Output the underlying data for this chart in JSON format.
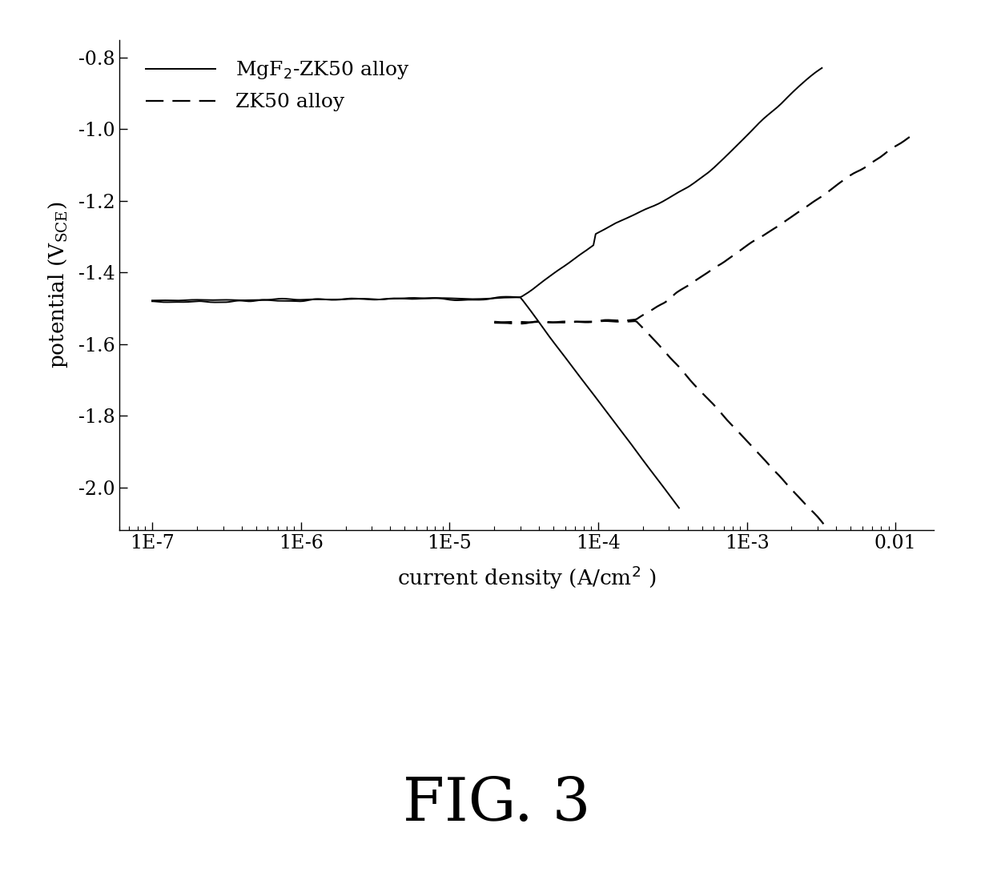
{
  "title": "FIG. 3",
  "ylabel": "potential (V$_{SCE}$)",
  "xlabel": "current density (A/cm$^2$ )",
  "ylim": [
    -2.1,
    -0.75
  ],
  "yticks": [
    -2.0,
    -1.8,
    -1.6,
    -1.4,
    -1.2,
    -1.0,
    -0.8
  ],
  "xtick_labels": [
    "1E-7",
    "1E-6",
    "1E-5",
    "1E-4",
    "1E-3",
    "0.01"
  ],
  "xtick_positions": [
    1e-07,
    1e-06,
    1e-05,
    0.0001,
    0.001,
    0.01
  ],
  "legend_solid": "MgF₂-ZK50 alloy",
  "legend_dashed": "ZK50 alloy",
  "E_corr_solid": -1.47,
  "i_corr_solid": 3e-05,
  "E_corr_dashed": -1.535,
  "i_corr_dashed": 0.00018,
  "background_color": "#ffffff"
}
